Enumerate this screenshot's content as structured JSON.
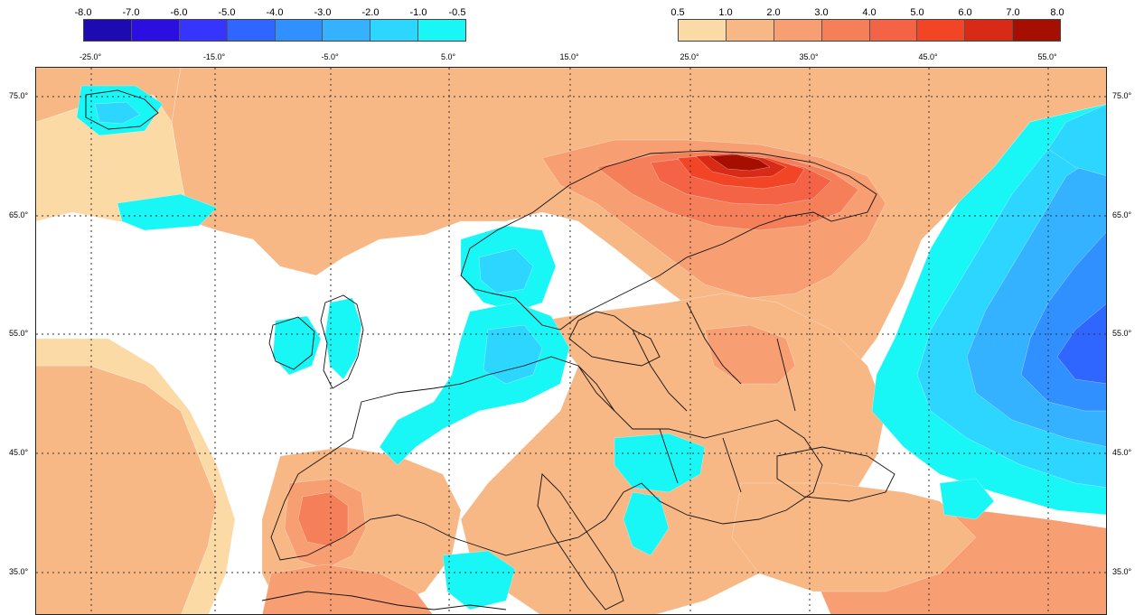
{
  "legend_negative": {
    "ticks": [
      "-8.0",
      "-7.0",
      "-6.0",
      "-5.0",
      "-4.0",
      "-3.0",
      "-2.0",
      "-1.0",
      "-0.5"
    ],
    "colors": [
      "#1d0ab0",
      "#2a0fe0",
      "#3535ff",
      "#2f66ff",
      "#3190ff",
      "#34b2ff",
      "#2cd6ff",
      "#18f6f6"
    ]
  },
  "legend_positive": {
    "ticks": [
      "0.5",
      "1.0",
      "2.0",
      "3.0",
      "4.0",
      "5.0",
      "6.0",
      "7.0",
      "8.0"
    ],
    "colors": [
      "#fbdaa6",
      "#f7b886",
      "#f79e72",
      "#f57f58",
      "#f56346",
      "#f24526",
      "#d72b17",
      "#a60e00"
    ]
  },
  "longitude_labels": [
    "-25.0°",
    "-15.0°",
    "-5.0°",
    "5.0°",
    "15.0°",
    "25.0°",
    "35.0°",
    "45.0°",
    "55.0°"
  ],
  "latitude_labels": [
    "75.0°",
    "65.0°",
    "55.0°",
    "45.0°",
    "35.0°"
  ],
  "map_colors": {
    "pale": "#fbdaa6",
    "light": "#f7b886",
    "medium": "#f79e72",
    "strong": "#f57f58",
    "stronger": "#f56346",
    "red": "#f24526",
    "dark_red": "#d72b17",
    "darkest": "#a60e00",
    "cyan": "#18f6f6",
    "sky": "#2cd6ff",
    "blue": "#34b2ff",
    "mid_blue": "#3190ff",
    "deep_blue": "#2f66ff"
  }
}
